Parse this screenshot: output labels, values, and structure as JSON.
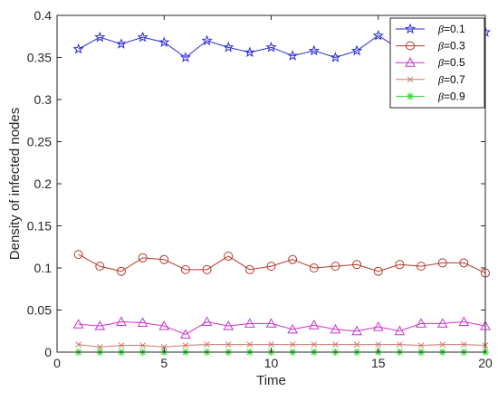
{
  "chart_data": {
    "type": "line",
    "title": "",
    "xlabel": "Time",
    "ylabel": "Density of infected nodes",
    "xlim": [
      0,
      20
    ],
    "ylim": [
      0,
      0.4
    ],
    "xticks": [
      0,
      5,
      10,
      15,
      20
    ],
    "xtick_labels": [
      "0",
      "5",
      "10",
      "15",
      "20"
    ],
    "yticks": [
      0,
      0.05,
      0.1,
      0.15,
      0.2,
      0.25,
      0.3,
      0.35,
      0.4
    ],
    "ytick_labels": [
      "0",
      "0.05",
      "0.1",
      "0.15",
      "0.2",
      "0.25",
      "0.3",
      "0.35",
      "0.4"
    ],
    "grid": false,
    "legend_position": "top-right",
    "x": [
      1,
      2,
      3,
      4,
      5,
      6,
      7,
      8,
      9,
      10,
      11,
      12,
      13,
      14,
      15,
      16,
      17,
      18,
      19,
      20
    ],
    "series": [
      {
        "name": "β=0.1",
        "legend_prefix": "β",
        "legend_suffix": "=0.1",
        "color": "#2a2ad6",
        "marker": "star",
        "values": [
          0.36,
          0.374,
          0.366,
          0.374,
          0.368,
          0.35,
          0.37,
          0.362,
          0.356,
          0.362,
          0.352,
          0.358,
          0.35,
          0.358,
          0.376,
          0.36,
          0.366,
          0.37,
          0.36,
          0.38
        ]
      },
      {
        "name": "β=0.3",
        "legend_prefix": "β",
        "legend_suffix": "=0.3",
        "color": "#b33a2b",
        "marker": "circle",
        "values": [
          0.116,
          0.102,
          0.096,
          0.112,
          0.11,
          0.098,
          0.098,
          0.114,
          0.098,
          0.102,
          0.11,
          0.1,
          0.102,
          0.104,
          0.096,
          0.104,
          0.102,
          0.106,
          0.106,
          0.094
        ]
      },
      {
        "name": "β=0.5",
        "legend_prefix": "β",
        "legend_suffix": "=0.5",
        "color": "#cc33cc",
        "marker": "triangle",
        "values": [
          0.033,
          0.031,
          0.036,
          0.035,
          0.031,
          0.021,
          0.036,
          0.031,
          0.034,
          0.034,
          0.027,
          0.032,
          0.027,
          0.025,
          0.03,
          0.025,
          0.034,
          0.034,
          0.036,
          0.031
        ]
      },
      {
        "name": "β=0.7",
        "legend_prefix": "β",
        "legend_suffix": "=0.7",
        "color": "#c8796a",
        "marker": "x",
        "values": [
          0.009,
          0.006,
          0.008,
          0.008,
          0.006,
          0.008,
          0.009,
          0.009,
          0.009,
          0.009,
          0.009,
          0.009,
          0.009,
          0.009,
          0.009,
          0.009,
          0.008,
          0.009,
          0.009,
          0.008
        ]
      },
      {
        "name": "β=0.9",
        "legend_prefix": "β",
        "legend_suffix": "=0.9",
        "color": "#33dd33",
        "marker": "asterisk",
        "values": [
          0.0,
          0.0,
          0.0,
          0.0,
          0.0,
          0.0,
          0.0,
          0.0,
          0.0,
          0.0,
          0.0,
          0.0,
          0.0,
          0.0,
          0.0,
          0.0,
          0.0,
          0.0,
          0.0,
          0.0
        ]
      }
    ]
  }
}
